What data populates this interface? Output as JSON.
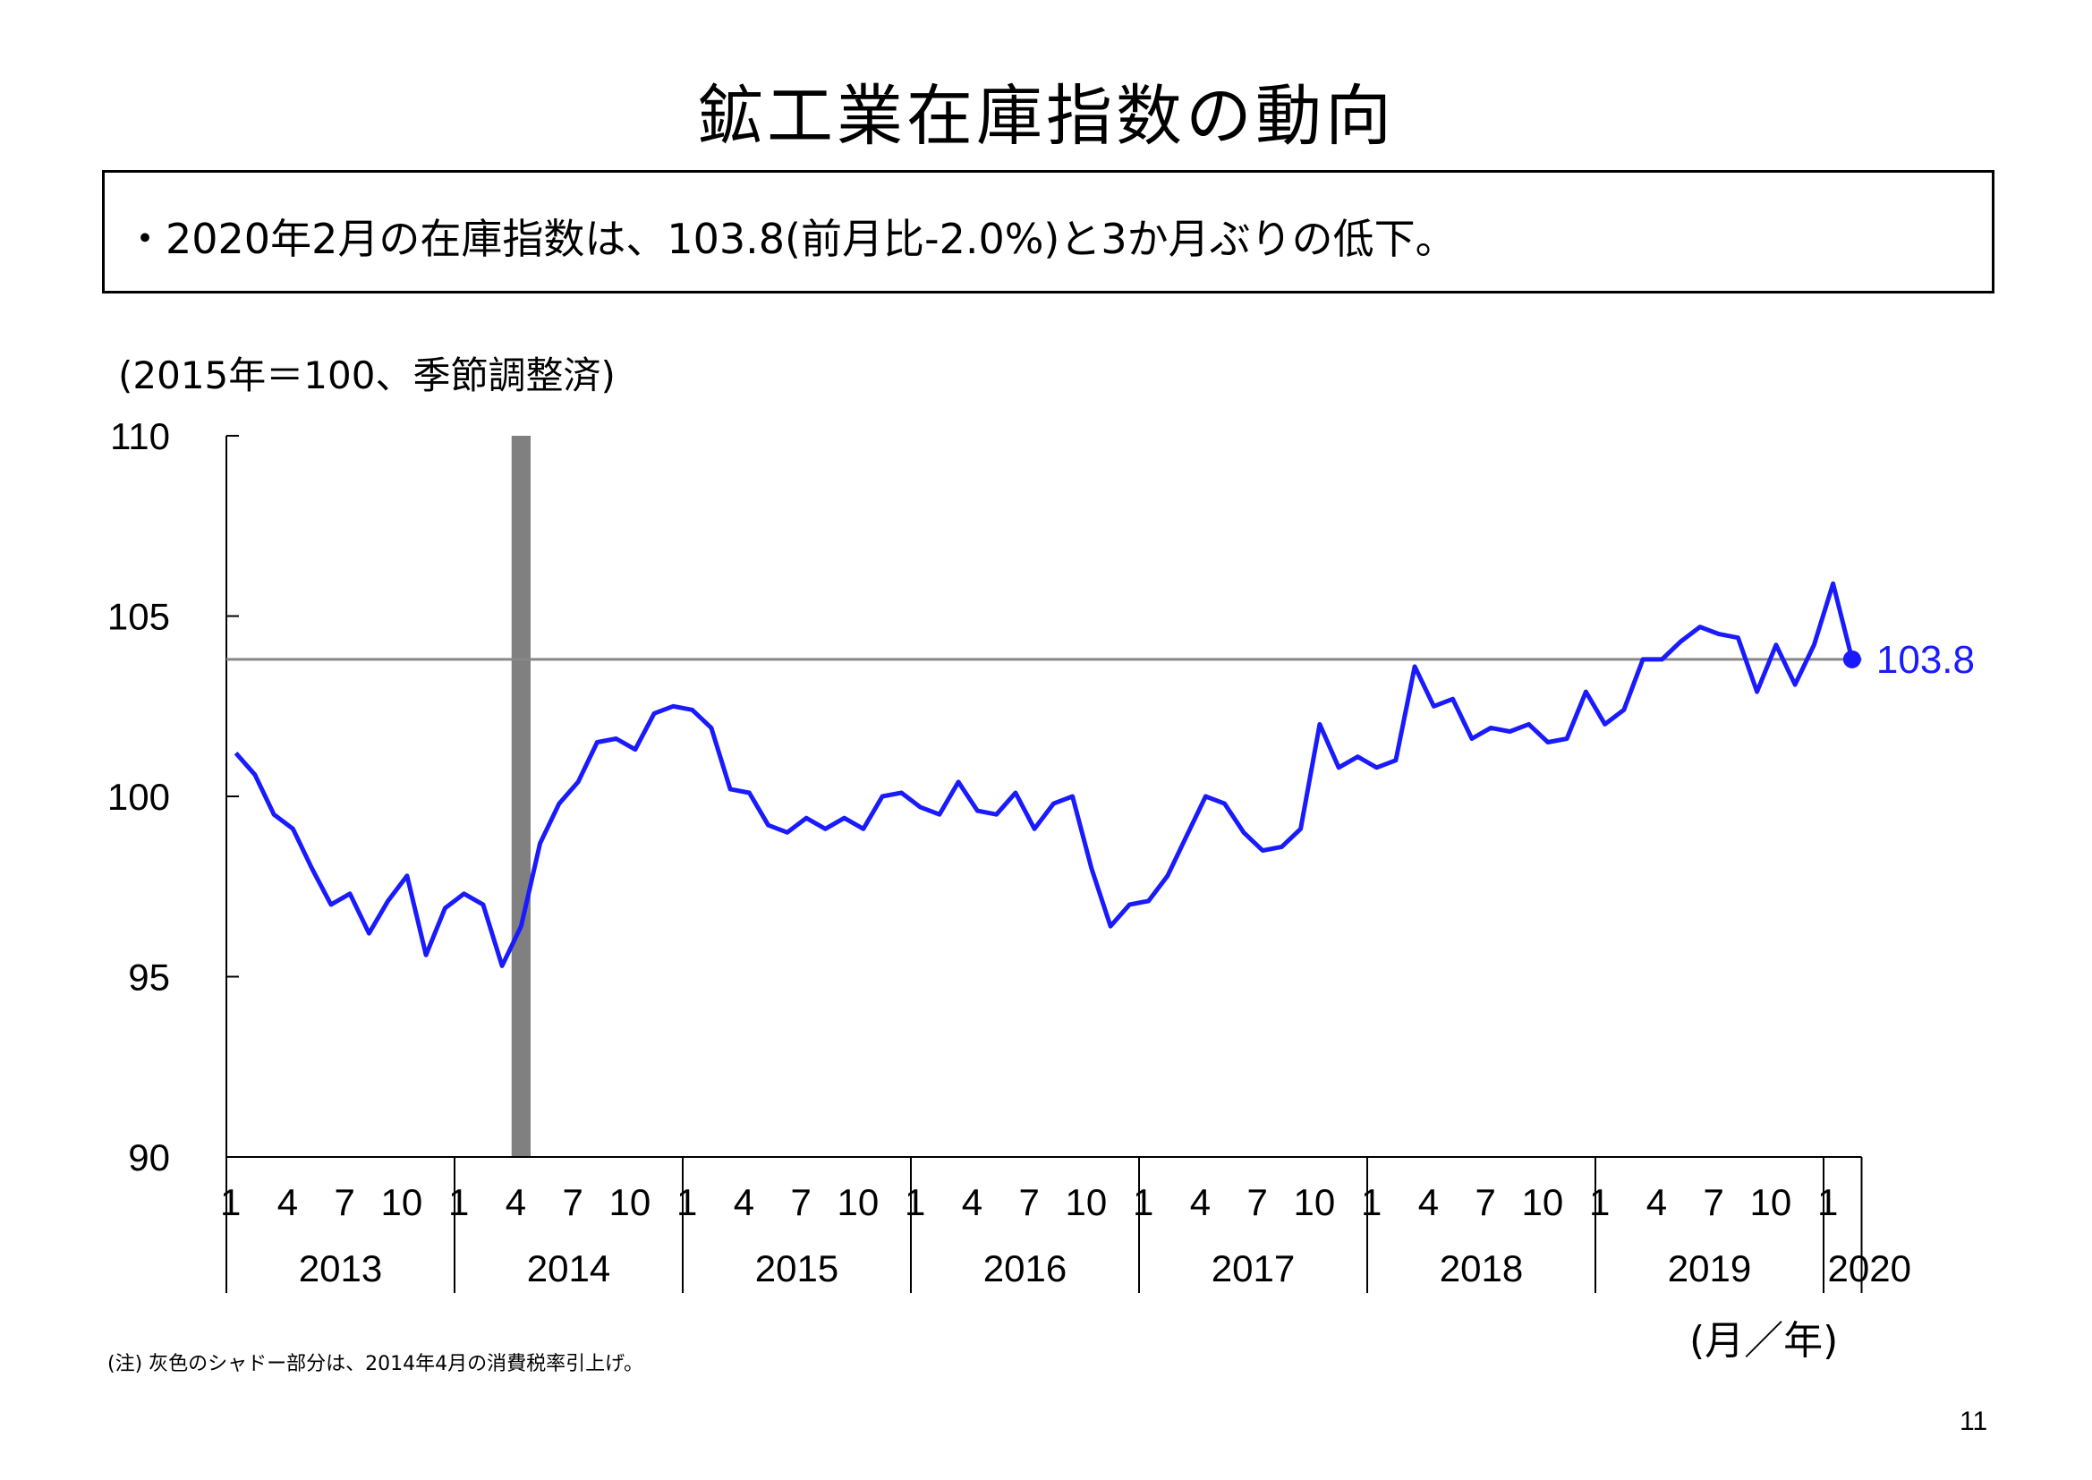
{
  "title": "鉱工業在庫指数の動向",
  "summary": "・2020年2月の在庫指数は、103.8(前月比-2.0%)と3か月ぶりの低下。",
  "unit_note": "(2015年＝100、季節調整済)",
  "x_unit": "(月／年)",
  "footnote": "(注) 灰色のシャドー部分は、2014年4月の消費税率引上げ。",
  "page_number": "11",
  "colors": {
    "series": "#1a1aff",
    "shade": "#808080",
    "reference_line": "#888888",
    "axis": "#000000"
  },
  "chart_data": {
    "type": "line",
    "title": "鉱工業在庫指数の動向",
    "ylim": [
      90,
      110
    ],
    "y_ticks": [
      "90",
      "95",
      "100",
      "105",
      "110"
    ],
    "x_month_labels": [
      "1",
      "4",
      "7",
      "10"
    ],
    "years": [
      "2013",
      "2014",
      "2015",
      "2016",
      "2017",
      "2018",
      "2019",
      "2020"
    ],
    "shade_period": {
      "start": "2014-04"
    },
    "reference_value": 103.8,
    "last_value_label": "103.8",
    "series": [
      {
        "values": [
          101.2,
          100.6,
          99.5,
          99.1,
          98.0,
          97.0,
          97.3,
          96.2,
          97.1,
          97.8,
          95.6,
          96.9,
          97.3,
          97.0,
          95.3,
          96.4,
          98.7,
          99.8,
          100.4,
          101.5,
          101.6,
          101.3,
          102.3,
          102.5,
          102.4,
          101.9,
          100.2,
          100.1,
          99.2,
          99.0,
          99.4,
          99.1,
          99.4,
          99.1,
          100.0,
          100.1,
          99.7,
          99.5,
          100.4,
          99.6,
          99.5,
          100.1,
          99.1,
          99.8,
          100.0,
          98.0,
          96.4,
          97.0,
          97.1,
          97.8,
          98.9,
          100.0,
          99.8,
          99.0,
          98.5,
          98.6,
          99.1,
          102.0,
          100.8,
          101.1,
          100.8,
          101.0,
          103.6,
          102.5,
          102.7,
          101.6,
          101.9,
          101.8,
          102.0,
          101.5,
          101.6,
          102.9,
          102.0,
          102.4,
          103.8,
          103.8,
          104.3,
          104.7,
          104.5,
          104.4,
          102.9,
          104.2,
          103.1,
          104.2,
          105.9,
          103.8
        ]
      }
    ]
  }
}
